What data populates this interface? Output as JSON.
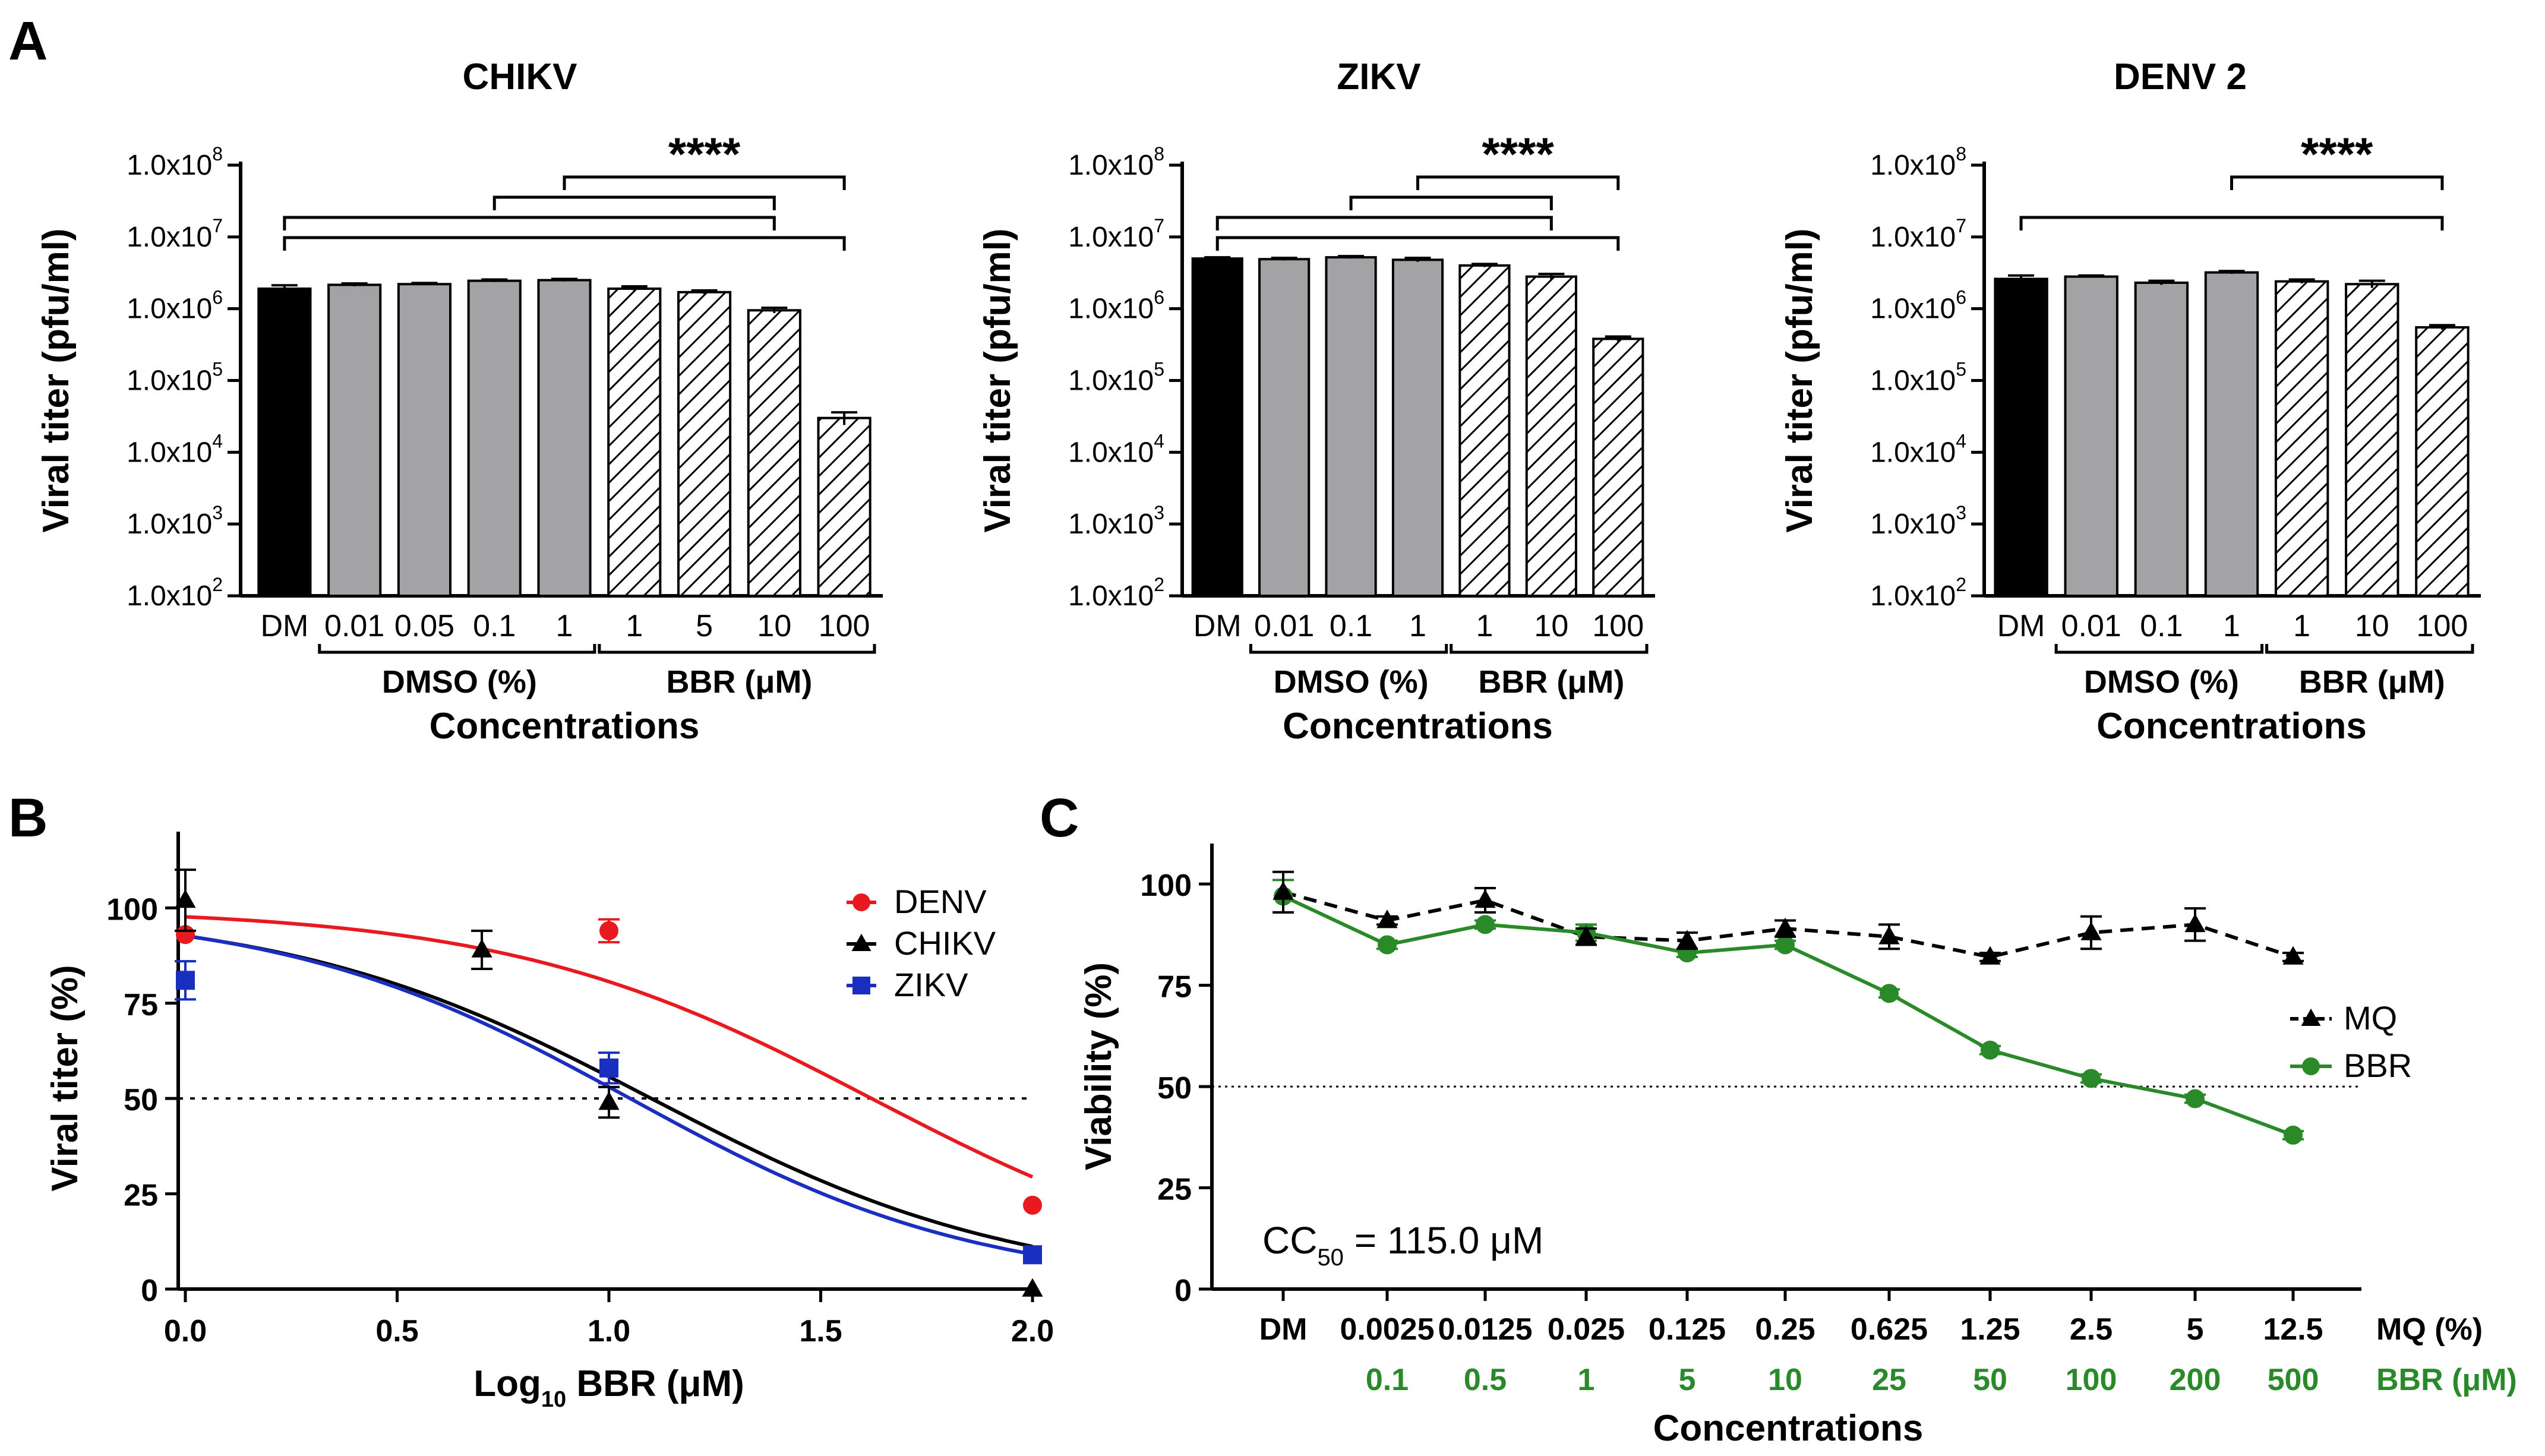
{
  "panel_labels": {
    "a": "A",
    "b": "B",
    "c": "C"
  },
  "colors": {
    "denv": "#e8191f",
    "chikv": "#000000",
    "zikv": "#1a2fc0",
    "bbr": "#2a8a2a",
    "mq": "#000000",
    "dmso_bar": "#a3a3a6",
    "dm_bar": "#000000"
  },
  "chart_data": [
    {
      "id": "A1",
      "type": "bar",
      "title": "CHIKV",
      "ylabel": "Viral titer (pfu/ml)",
      "xlabel": "Concentrations",
      "yscale": "log",
      "ylim": [
        100,
        100000000
      ],
      "ytick_labels": [
        "1.0x10",
        "1.0x10",
        "1.0x10",
        "1.0x10",
        "1.0x10",
        "1.0x10",
        "1.0x10"
      ],
      "ytick_exponents": [
        "2",
        "3",
        "4",
        "5",
        "6",
        "7",
        "8"
      ],
      "categories": [
        "DM",
        "0.01",
        "0.05",
        "0.1",
        "1",
        "1",
        "5",
        "10",
        "100"
      ],
      "fills": [
        "black",
        "gray",
        "gray",
        "gray",
        "gray",
        "hatch",
        "hatch",
        "hatch",
        "hatch"
      ],
      "values": [
        1900000,
        2150000,
        2200000,
        2450000,
        2500000,
        1900000,
        1700000,
        950000,
        30000
      ],
      "errors": [
        220000,
        100000,
        80000,
        100000,
        100000,
        150000,
        100000,
        80000,
        6000
      ],
      "groups": [
        {
          "label": "DMSO (%)",
          "from": 1,
          "to": 4
        },
        {
          "label": "BBR (μM)",
          "from": 5,
          "to": 8
        }
      ],
      "significance": {
        "label": "****",
        "brackets": [
          [
            4,
            8
          ],
          [
            3,
            7
          ],
          [
            0,
            7
          ],
          [
            0,
            8
          ]
        ]
      }
    },
    {
      "id": "A2",
      "type": "bar",
      "title": "ZIKV",
      "ylabel": "Viral titer (pfu/ml)",
      "xlabel": "Concentrations",
      "yscale": "log",
      "ylim": [
        100,
        100000000
      ],
      "ytick_labels": [
        "1.0x10",
        "1.0x10",
        "1.0x10",
        "1.0x10",
        "1.0x10",
        "1.0x10",
        "1.0x10"
      ],
      "ytick_exponents": [
        "2",
        "3",
        "4",
        "5",
        "6",
        "7",
        "8"
      ],
      "categories": [
        "DM",
        "0.01",
        "0.1",
        "1",
        "1",
        "10",
        "100"
      ],
      "fills": [
        "black",
        "gray",
        "gray",
        "gray",
        "hatch",
        "hatch",
        "hatch"
      ],
      "values": [
        5000000,
        4900000,
        5200000,
        4800000,
        4000000,
        2800000,
        380000
      ],
      "errors": [
        200000,
        200000,
        200000,
        300000,
        200000,
        250000,
        30000
      ],
      "groups": [
        {
          "label": "DMSO (%)",
          "from": 1,
          "to": 3
        },
        {
          "label": "BBR (μM)",
          "from": 4,
          "to": 6
        }
      ],
      "significance": {
        "label": "****",
        "brackets": [
          [
            3,
            6
          ],
          [
            2,
            5
          ],
          [
            0,
            5
          ],
          [
            0,
            6
          ]
        ]
      }
    },
    {
      "id": "A3",
      "type": "bar",
      "title": "DENV 2",
      "ylabel": "Viral titer (pfu/ml)",
      "xlabel": "Concentrations",
      "yscale": "log",
      "ylim": [
        100,
        100000000
      ],
      "ytick_labels": [
        "1.0x10",
        "1.0x10",
        "1.0x10",
        "1.0x10",
        "1.0x10",
        "1.0x10",
        "1.0x10"
      ],
      "ytick_exponents": [
        "2",
        "3",
        "4",
        "5",
        "6",
        "7",
        "8"
      ],
      "categories": [
        "DM",
        "0.01",
        "0.1",
        "1",
        "1",
        "10",
        "100"
      ],
      "fills": [
        "black",
        "gray",
        "gray",
        "gray",
        "hatch",
        "hatch",
        "hatch"
      ],
      "values": [
        2600000,
        2800000,
        2300000,
        3200000,
        2400000,
        2200000,
        550000
      ],
      "errors": [
        300000,
        100000,
        150000,
        150000,
        150000,
        250000,
        40000
      ],
      "groups": [
        {
          "label": "DMSO (%)",
          "from": 1,
          "to": 3
        },
        {
          "label": "BBR (μM)",
          "from": 4,
          "to": 6
        }
      ],
      "significance": {
        "label": "****",
        "brackets": [
          [
            3,
            6
          ],
          [
            0,
            6
          ]
        ]
      }
    },
    {
      "id": "B",
      "type": "line",
      "ylabel": "Viral titer (%)",
      "xlabel_main": "Log",
      "xlabel_sub": "10",
      "xlabel_rest": " BBR (μM)",
      "xlim": [
        0,
        2
      ],
      "ylim": [
        0,
        120
      ],
      "xticks": [
        "0.0",
        "0.5",
        "1.0",
        "1.5",
        "2.0"
      ],
      "xtick_values": [
        0,
        0.5,
        1,
        1.5,
        2
      ],
      "yticks": [
        "0",
        "25",
        "50",
        "75",
        "100"
      ],
      "ytick_values": [
        0,
        25,
        50,
        75,
        100
      ],
      "reference_line": 50,
      "series": [
        {
          "name": "DENV",
          "marker": "circle",
          "color_key": "denv",
          "x": [
            0,
            1,
            2
          ],
          "y": [
            93,
            94,
            22
          ],
          "err": [
            0,
            3,
            0
          ],
          "fit": {
            "top": 100,
            "bottom": 0,
            "logic50": 1.62,
            "hill": 1.0
          }
        },
        {
          "name": "CHIKV",
          "marker": "triangle",
          "color_key": "chikv",
          "x": [
            0,
            0.7,
            1,
            2
          ],
          "y": [
            102,
            89,
            49,
            0
          ],
          "err": [
            8,
            5,
            4,
            0
          ],
          "fit": {
            "top": 100,
            "bottom": 0,
            "logic50": 1.1,
            "hill": 1.0
          }
        },
        {
          "name": "ZIKV",
          "marker": "square",
          "color_key": "zikv",
          "x": [
            0,
            1,
            2
          ],
          "y": [
            81,
            58,
            9
          ],
          "err": [
            5,
            4,
            0
          ],
          "fit": {
            "top": 100,
            "bottom": 0,
            "logic50": 1.05,
            "hill": 1.05
          }
        }
      ]
    },
    {
      "id": "C",
      "type": "line",
      "ylabel": "Viability (%)",
      "xlabel": "Concentrations",
      "ylim": [
        0,
        110
      ],
      "yticks": [
        "0",
        "25",
        "50",
        "75",
        "100"
      ],
      "ytick_values": [
        0,
        25,
        50,
        75,
        100
      ],
      "reference_line": 50,
      "categories_mq": [
        "DM",
        "0.0025",
        "0.0125",
        "0.025",
        "0.125",
        "0.25",
        "0.625",
        "1.25",
        "2.5",
        "5",
        "12.5"
      ],
      "categories_bbr": [
        "",
        "0.1",
        "0.5",
        "1",
        "5",
        "10",
        "25",
        "50",
        "100",
        "200",
        "500"
      ],
      "row_label_mq": "MQ (%)",
      "row_label_bbr": "BBR (μM)",
      "annotation_main": "CC",
      "annotation_sub": "50",
      "annotation_rest": " = 115.0 μM",
      "series": [
        {
          "name": "MQ",
          "marker": "triangle",
          "color_key": "mq",
          "dashed": true,
          "y": [
            98,
            91,
            96,
            87,
            86,
            89,
            87,
            82,
            88,
            90,
            82
          ],
          "err": [
            5,
            1,
            3,
            2,
            2,
            2,
            3,
            1,
            4,
            4,
            1
          ]
        },
        {
          "name": "BBR",
          "marker": "circle",
          "color_key": "bbr",
          "dashed": false,
          "y": [
            97,
            85,
            90,
            88,
            83,
            85,
            73,
            59,
            52,
            47,
            38
          ],
          "err": [
            4,
            1,
            1,
            2,
            1,
            1,
            1,
            1,
            1,
            1,
            1
          ]
        }
      ]
    }
  ]
}
